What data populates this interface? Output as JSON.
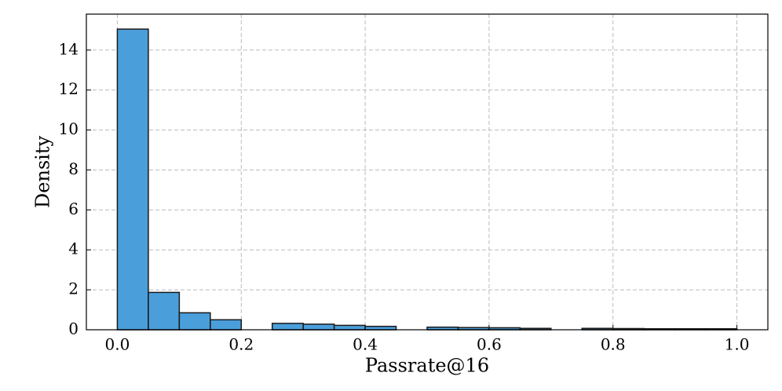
{
  "chart_data": {
    "type": "histogram",
    "x_label": "Passrate@16",
    "y_label": "Density",
    "bins": [
      0,
      0.05,
      0.1,
      0.15,
      0.2,
      0.25,
      0.3,
      0.35,
      0.4,
      0.45,
      0.5,
      0.55,
      0.6,
      0.65,
      0.7,
      0.75,
      0.8,
      0.85,
      0.9,
      0.95,
      1
    ],
    "values": [
      15.05,
      1.87,
      0.85,
      0.5,
      0,
      0.32,
      0.28,
      0.22,
      0.17,
      0,
      0.13,
      0.11,
      0.1,
      0.07,
      0,
      0.07,
      0.06,
      0.05,
      0.05,
      0.05
    ],
    "color": "#4a9fdb",
    "edgecolor": "#1a1a1a",
    "xlim": [
      -0.05,
      1.05
    ],
    "ylim": [
      0,
      15.8
    ],
    "xticks": [
      {
        "value": 0,
        "label": "0.0"
      },
      0.2,
      0.4,
      0.6,
      0.8,
      {
        "value": 1,
        "label": "1.0"
      }
    ],
    "yticks": [
      0,
      2,
      4,
      6,
      8,
      10,
      12,
      14
    ],
    "grid": true
  }
}
